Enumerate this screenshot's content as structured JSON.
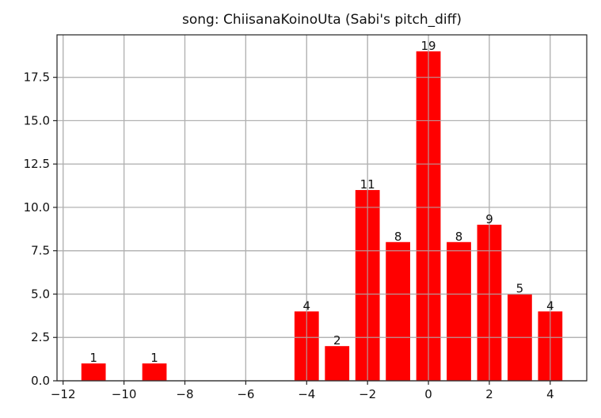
{
  "chart_data": {
    "type": "bar",
    "title": "song: ChiisanaKoinoUta (Sabi's pitch_diff)",
    "xlabel": "",
    "ylabel": "",
    "x": [
      -11,
      -9,
      -4,
      -3,
      -2,
      -1,
      0,
      1,
      2,
      3,
      4
    ],
    "values": [
      1,
      1,
      4,
      2,
      11,
      8,
      19,
      8,
      9,
      5,
      4
    ],
    "data_labels": [
      "1",
      "1",
      "4",
      "2",
      "11",
      "8",
      "19",
      "8",
      "9",
      "5",
      "4"
    ],
    "bar_color": "#ff0000",
    "xlim": [
      -12.2,
      5.2
    ],
    "ylim": [
      0,
      19.95
    ],
    "xticks": [
      -12,
      -10,
      -8,
      -6,
      -4,
      -2,
      0,
      2,
      4
    ],
    "xtick_labels": [
      "−12",
      "−10",
      "−8",
      "−6",
      "−4",
      "−2",
      "0",
      "2",
      "4"
    ],
    "yticks": [
      0,
      2.5,
      5,
      7.5,
      10,
      12.5,
      15,
      17.5
    ],
    "ytick_labels": [
      "0.0",
      "2.5",
      "5.0",
      "7.5",
      "10.0",
      "12.5",
      "15.0",
      "17.5"
    ],
    "grid": true,
    "legend": "none"
  }
}
